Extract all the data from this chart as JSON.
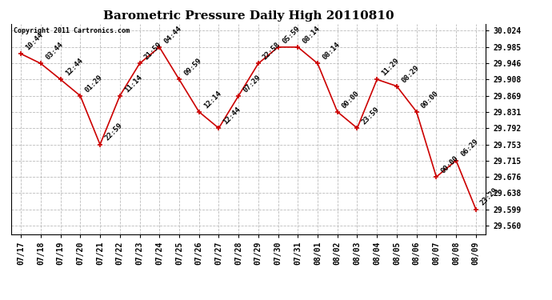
{
  "title": "Barometric Pressure Daily High 20110810",
  "copyright": "Copyright 2011 Cartronics.com",
  "x_labels": [
    "07/17",
    "07/18",
    "07/19",
    "07/20",
    "07/21",
    "07/22",
    "07/23",
    "07/24",
    "07/25",
    "07/26",
    "07/27",
    "07/28",
    "07/29",
    "07/30",
    "07/31",
    "08/01",
    "08/02",
    "08/03",
    "08/04",
    "08/05",
    "08/06",
    "08/07",
    "08/08",
    "08/09"
  ],
  "y_values": [
    29.969,
    29.946,
    29.908,
    29.869,
    29.753,
    29.869,
    29.946,
    29.985,
    29.908,
    29.831,
    29.792,
    29.869,
    29.946,
    29.985,
    29.985,
    29.946,
    29.831,
    29.792,
    29.908,
    29.892,
    29.831,
    29.676,
    29.715,
    29.599
  ],
  "annotations": [
    "10:44",
    "03:44",
    "12:44",
    "01:29",
    "22:59",
    "11:14",
    "21:59",
    "04:44",
    "09:59",
    "12:14",
    "12:44",
    "07:29",
    "22:58",
    "05:59",
    "08:14",
    "08:14",
    "00:00",
    "23:59",
    "11:29",
    "08:29",
    "00:00",
    "00:00",
    "06:29",
    "23:29"
  ],
  "y_ticks": [
    29.56,
    29.599,
    29.638,
    29.676,
    29.715,
    29.753,
    29.792,
    29.831,
    29.869,
    29.908,
    29.946,
    29.985,
    30.024
  ],
  "ylim": [
    29.54,
    30.04
  ],
  "line_color": "#cc0000",
  "marker_color": "#cc0000",
  "bg_color": "white",
  "grid_color": "#bbbbbb",
  "title_fontsize": 11,
  "annotation_fontsize": 6.5,
  "xlabel_fontsize": 7,
  "ylabel_fontsize": 7,
  "copyright_fontsize": 6
}
